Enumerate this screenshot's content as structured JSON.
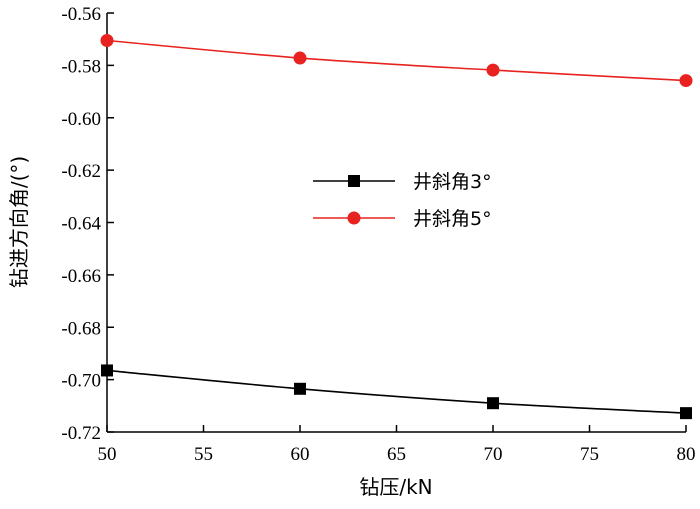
{
  "chart_data": {
    "type": "line",
    "title": "",
    "xlabel": "钻压/kN",
    "ylabel": "钻进方向角/(°)",
    "xlim": [
      50,
      80
    ],
    "ylim": [
      -0.72,
      -0.56
    ],
    "x_ticks": [
      "50",
      "55",
      "60",
      "65",
      "70",
      "75",
      "80"
    ],
    "y_ticks": [
      "-0.56",
      "-0.58",
      "-0.60",
      "-0.62",
      "-0.64",
      "-0.66",
      "-0.68",
      "-0.70",
      "-0.72"
    ],
    "grid": false,
    "legend_position": "center-right",
    "x": [
      50,
      60,
      70,
      80
    ],
    "series": [
      {
        "name": "井斜角3°",
        "values": [
          -0.6965,
          -0.7035,
          -0.709,
          -0.7128
        ],
        "color": "#000000",
        "marker": "square"
      },
      {
        "name": "井斜角5°",
        "values": [
          -0.5705,
          -0.5772,
          -0.5818,
          -0.5858
        ],
        "color": "#e8231f",
        "marker": "circle"
      }
    ]
  }
}
